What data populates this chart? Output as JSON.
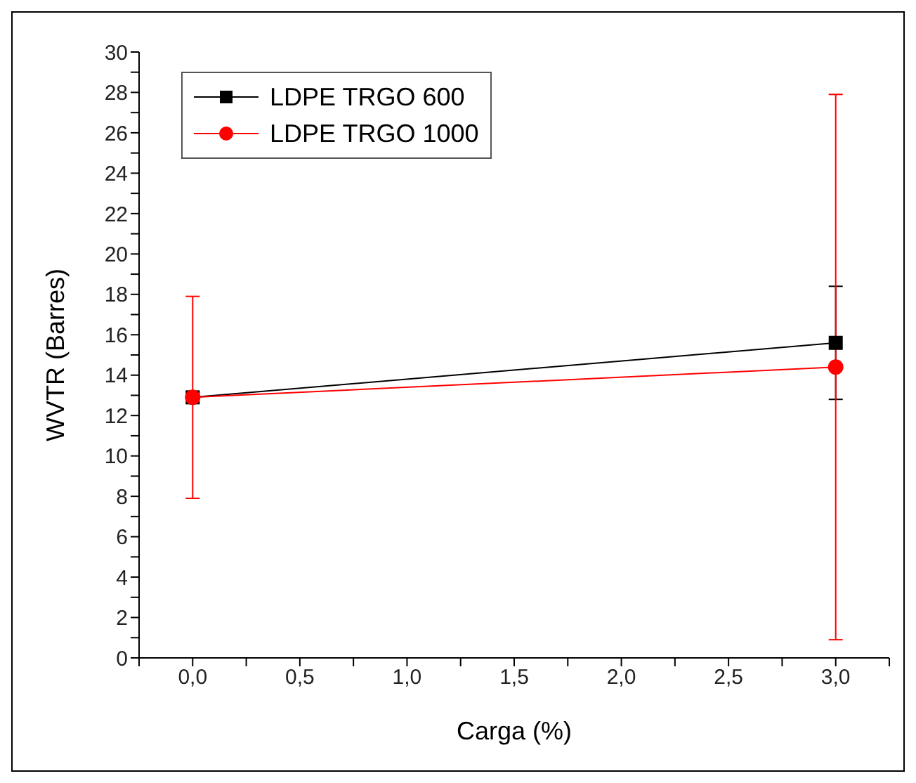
{
  "chart_data": {
    "type": "line",
    "xlabel": "Carga (%)",
    "ylabel": "WVTR (Barres)",
    "x": [
      0,
      3
    ],
    "series": [
      {
        "name": "LDPE TRGO 600",
        "color": "#000000",
        "marker": "square",
        "values": [
          12.9,
          15.6
        ],
        "errors": [
          null,
          2.8
        ]
      },
      {
        "name": "LDPE TRGO 1000",
        "color": "#ff0000",
        "marker": "circle",
        "values": [
          12.9,
          14.4
        ],
        "errors": [
          5,
          13.5
        ]
      }
    ],
    "xlim": [
      -0.25,
      3.25
    ],
    "xticks": [
      {
        "value": -0.25,
        "label": null
      },
      {
        "value": 0,
        "label": "0,0"
      },
      {
        "value": 0.25,
        "label": null
      },
      {
        "value": 0.5,
        "label": "0,5"
      },
      {
        "value": 0.75,
        "label": null
      },
      {
        "value": 1,
        "label": "1,0"
      },
      {
        "value": 1.25,
        "label": null
      },
      {
        "value": 1.5,
        "label": "1,5"
      },
      {
        "value": 1.75,
        "label": null
      },
      {
        "value": 2,
        "label": "2,0"
      },
      {
        "value": 2.25,
        "label": null
      },
      {
        "value": 2.5,
        "label": "2,5"
      },
      {
        "value": 2.75,
        "label": null
      },
      {
        "value": 3,
        "label": "3,0"
      },
      {
        "value": 3.25,
        "label": null
      }
    ],
    "ylim": [
      0,
      30
    ],
    "yticks": [
      0,
      {
        "value": 1,
        "label": null
      },
      2,
      {
        "value": 3,
        "label": null
      },
      4,
      {
        "value": 5,
        "label": null
      },
      6,
      {
        "value": 7,
        "label": null
      },
      8,
      {
        "value": 9,
        "label": null
      },
      10,
      {
        "value": 11,
        "label": null
      },
      12,
      {
        "value": 13,
        "label": null
      },
      14,
      {
        "value": 15,
        "label": null
      },
      16,
      {
        "value": 17,
        "label": null
      },
      18,
      {
        "value": 19,
        "label": null
      },
      20,
      {
        "value": 21,
        "label": null
      },
      22,
      {
        "value": 23,
        "label": null
      },
      24,
      {
        "value": 25,
        "label": null
      },
      26,
      {
        "value": 27,
        "label": null
      },
      28,
      {
        "value": 29,
        "label": null
      },
      30
    ],
    "grid": false,
    "legend": "top left"
  }
}
